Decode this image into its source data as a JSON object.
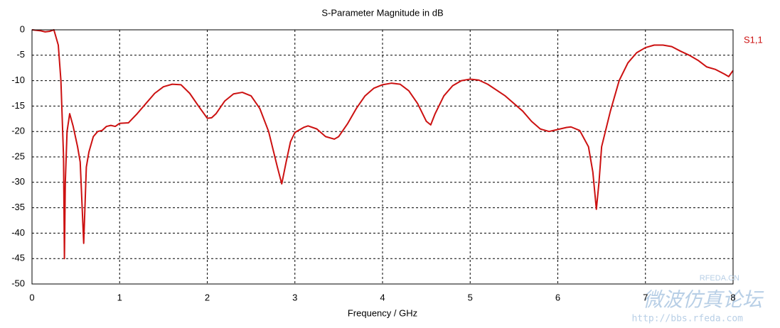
{
  "chart_data": {
    "type": "line",
    "title": "S-Parameter Magnitude in dB",
    "x_label": "Frequency / GHz",
    "x": [
      0,
      0.1,
      0.15,
      0.2,
      0.25,
      0.3,
      0.33,
      0.36,
      0.37,
      0.38,
      0.4,
      0.43,
      0.47,
      0.52,
      0.55,
      0.59,
      0.62,
      0.65,
      0.7,
      0.75,
      0.8,
      0.85,
      0.9,
      0.95,
      1.0,
      1.1,
      1.2,
      1.3,
      1.4,
      1.5,
      1.6,
      1.7,
      1.8,
      1.9,
      2.0,
      2.05,
      2.1,
      2.2,
      2.3,
      2.4,
      2.5,
      2.6,
      2.7,
      2.8,
      2.85,
      2.9,
      2.95,
      3.0,
      3.1,
      3.15,
      3.25,
      3.35,
      3.45,
      3.5,
      3.6,
      3.7,
      3.8,
      3.9,
      4.0,
      4.1,
      4.2,
      4.3,
      4.4,
      4.5,
      4.55,
      4.6,
      4.7,
      4.8,
      4.9,
      5.0,
      5.1,
      5.2,
      5.4,
      5.6,
      5.7,
      5.8,
      5.9,
      6.0,
      6.1,
      6.15,
      6.25,
      6.35,
      6.4,
      6.44,
      6.47,
      6.5,
      6.6,
      6.7,
      6.8,
      6.9,
      7.0,
      7.1,
      7.2,
      7.3,
      7.4,
      7.5,
      7.6,
      7.7,
      7.8,
      7.9,
      7.95,
      8.0
    ],
    "series": [
      {
        "name": "S1,1",
        "color": "#cc1111",
        "values": [
          0,
          -0.2,
          -0.4,
          -0.3,
          0,
          -3,
          -10,
          -25,
          -45,
          -30,
          -20,
          -16.5,
          -19,
          -23,
          -26,
          -42,
          -27,
          -24,
          -21,
          -20,
          -19.8,
          -19,
          -18.8,
          -19,
          -18.4,
          -18.3,
          -16.5,
          -14.5,
          -12.5,
          -11.2,
          -10.7,
          -10.8,
          -12.5,
          -15,
          -17.4,
          -17.3,
          -16.5,
          -14,
          -12.6,
          -12.3,
          -13,
          -15.5,
          -20,
          -27,
          -30.3,
          -26,
          -22,
          -20.2,
          -19.2,
          -18.9,
          -19.5,
          -21,
          -21.5,
          -21,
          -18.5,
          -15.5,
          -13,
          -11.5,
          -10.8,
          -10.5,
          -10.7,
          -12,
          -14.5,
          -18,
          -18.7,
          -16.5,
          -13,
          -11,
          -10,
          -9.7,
          -9.9,
          -10.7,
          -13,
          -16,
          -18,
          -19.5,
          -20,
          -19.6,
          -19.2,
          -19.1,
          -19.8,
          -23,
          -28,
          -35.3,
          -30,
          -23,
          -16,
          -10,
          -6.5,
          -4.5,
          -3.5,
          -3,
          -3,
          -3.3,
          -4.2,
          -5,
          -6,
          -7.3,
          -7.8,
          -8.7,
          -9.2,
          -8
        ]
      }
    ],
    "xlim": [
      0,
      8
    ],
    "ylim": [
      -50,
      0
    ],
    "xticks": [
      0,
      1,
      2,
      3,
      4,
      5,
      6,
      7,
      8
    ],
    "yticks": [
      0,
      -5,
      -10,
      -15,
      -20,
      -25,
      -30,
      -35,
      -40,
      -45,
      -50
    ],
    "grid": true,
    "watermark": [
      "RFEDA.CN",
      "微波仿真论坛",
      "http://bbs.rfeda.com"
    ]
  }
}
